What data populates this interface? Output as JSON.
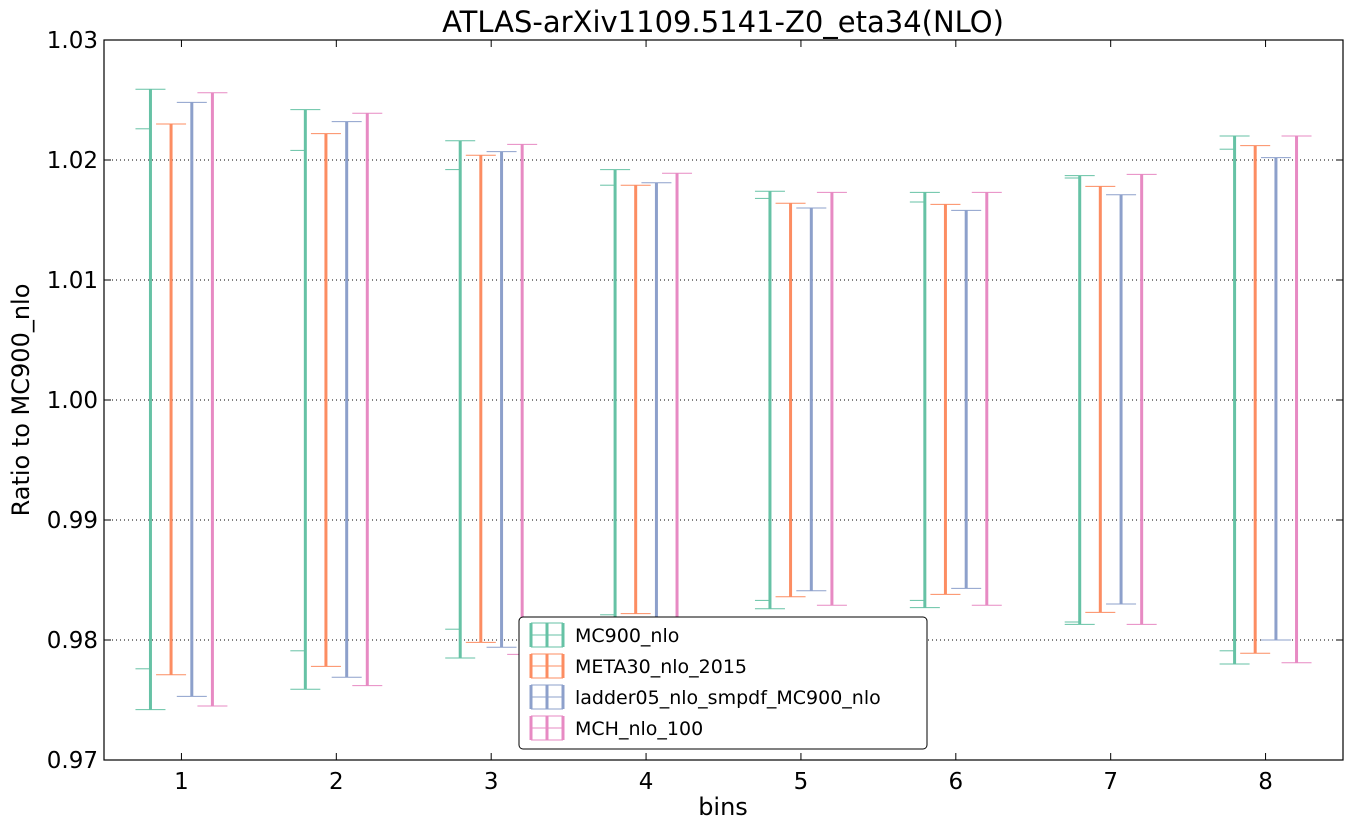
{
  "chart_data": {
    "type": "errorbar",
    "title": "ATLAS-arXiv1109.5141-Z0_eta34(NLO)",
    "xlabel": "bins",
    "ylabel": "Ratio to MC900_nlo",
    "xlim": [
      0.5,
      8.5
    ],
    "ylim": [
      0.97,
      1.03
    ],
    "xticks": [
      1,
      2,
      3,
      4,
      5,
      6,
      7,
      8
    ],
    "xtick_labels": [
      "1",
      "2",
      "3",
      "4",
      "5",
      "6",
      "7",
      "8"
    ],
    "yticks": [
      0.97,
      0.98,
      0.99,
      1.0,
      1.01,
      1.02,
      1.03
    ],
    "ytick_labels": [
      "0.97",
      "0.98",
      "0.99",
      "1.00",
      "1.01",
      "1.02",
      "1.03"
    ],
    "grid": "horizontal dotted",
    "legend_position": "lower center",
    "categories": [
      1,
      2,
      3,
      4,
      5,
      6,
      7,
      8
    ],
    "series": [
      {
        "name": "MC900_nlo",
        "color": "#66c2a5",
        "offset": -0.2,
        "outer": [
          [
            0.9742,
            1.0259
          ],
          [
            0.9759,
            1.0242
          ],
          [
            0.9785,
            1.0216
          ],
          [
            0.9814,
            1.0192
          ],
          [
            0.9826,
            1.0174
          ],
          [
            0.9827,
            1.0173
          ],
          [
            0.9813,
            1.0187
          ],
          [
            0.978,
            1.022
          ]
        ],
        "inner": [
          [
            0.9776,
            1.0226
          ],
          [
            0.9791,
            1.0208
          ],
          [
            0.9809,
            1.0192
          ],
          [
            0.9821,
            1.0179
          ],
          [
            0.9833,
            1.0168
          ],
          [
            0.9833,
            1.0165
          ],
          [
            0.9815,
            1.0185
          ],
          [
            0.9791,
            1.0209
          ]
        ]
      },
      {
        "name": "META30_nlo_2015",
        "color": "#fc8d62",
        "offset": -0.067,
        "outer": [
          [
            0.9771,
            1.023
          ],
          [
            0.9778,
            1.0222
          ],
          [
            0.9798,
            1.0204
          ],
          [
            0.9822,
            1.0179
          ],
          [
            0.9836,
            1.0164
          ],
          [
            0.9838,
            1.0163
          ],
          [
            0.9823,
            1.0178
          ],
          [
            0.9789,
            1.0212
          ]
        ],
        "inner": []
      },
      {
        "name": "ladder05_nlo_smpdf_MC900_nlo",
        "color": "#8da0cb",
        "offset": 0.067,
        "outer": [
          [
            0.9753,
            1.0248
          ],
          [
            0.9769,
            1.0232
          ],
          [
            0.9794,
            1.0207
          ],
          [
            0.9819,
            1.0181
          ],
          [
            0.9841,
            1.016
          ],
          [
            0.9843,
            1.0158
          ],
          [
            0.983,
            1.0171
          ],
          [
            0.98,
            1.0202
          ]
        ],
        "inner": []
      },
      {
        "name": "MCH_nlo_100",
        "color": "#e78ac3",
        "offset": 0.2,
        "outer": [
          [
            0.9745,
            1.0256
          ],
          [
            0.9762,
            1.0239
          ],
          [
            0.9788,
            1.0213
          ],
          [
            0.9812,
            1.0189
          ],
          [
            0.9829,
            1.0173
          ],
          [
            0.9829,
            1.0173
          ],
          [
            0.9813,
            1.0188
          ],
          [
            0.9781,
            1.022
          ]
        ],
        "inner": []
      }
    ]
  }
}
